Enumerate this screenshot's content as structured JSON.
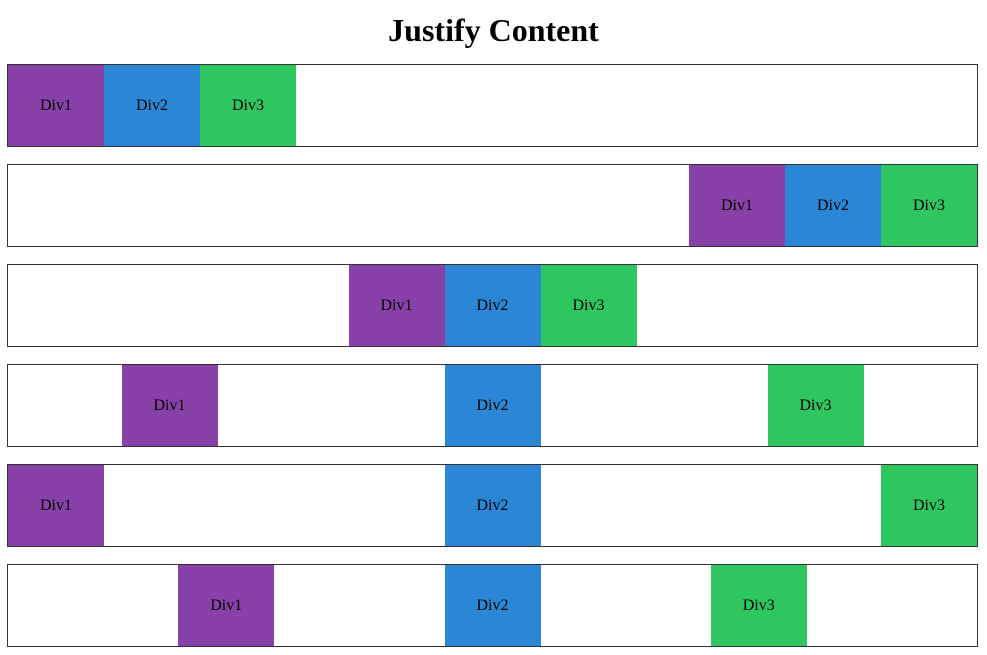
{
  "title": "Justify Content",
  "colors": {
    "div1": "#8741a8",
    "div2": "#2b87d6",
    "div3": "#2ec65e"
  },
  "rows": [
    {
      "justify": "flex-start",
      "boxes": [
        "Div1",
        "Div2",
        "Div3"
      ]
    },
    {
      "justify": "flex-end",
      "boxes": [
        "Div1",
        "Div2",
        "Div3"
      ]
    },
    {
      "justify": "center",
      "boxes": [
        "Div1",
        "Div2",
        "Div3"
      ]
    },
    {
      "justify": "space-around",
      "boxes": [
        "Div1",
        "Div2",
        "Div3"
      ]
    },
    {
      "justify": "space-between",
      "boxes": [
        "Div1",
        "Div2",
        "Div3"
      ]
    },
    {
      "justify": "space-evenly",
      "boxes": [
        "Div1",
        "Div2",
        "Div3"
      ]
    }
  ]
}
